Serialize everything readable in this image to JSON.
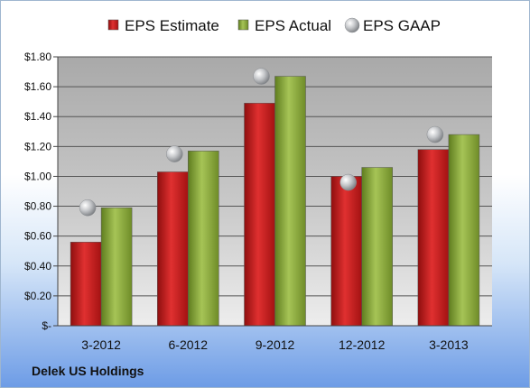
{
  "company": "Delek US Holdings",
  "chart_data": {
    "type": "bar",
    "categories": [
      "3-2012",
      "6-2012",
      "9-2012",
      "12-2012",
      "3-2013"
    ],
    "series": [
      {
        "name": "EPS Estimate",
        "values": [
          0.56,
          1.03,
          1.49,
          1.0,
          1.18
        ],
        "color": "#c81e1e",
        "kind": "bar"
      },
      {
        "name": "EPS Actual",
        "values": [
          0.79,
          1.17,
          1.67,
          1.06,
          1.28
        ],
        "color": "#8fb03c",
        "kind": "bar"
      },
      {
        "name": "EPS GAAP",
        "values": [
          0.79,
          1.15,
          1.67,
          0.96,
          1.28
        ],
        "color": "#b9bcc0",
        "kind": "marker"
      }
    ],
    "ylim": [
      0,
      1.8
    ],
    "y_ticks": [
      0,
      0.2,
      0.4,
      0.6,
      0.8,
      1.0,
      1.2,
      1.4,
      1.6,
      1.8
    ],
    "y_tick_labels": [
      "$-",
      "$0.20",
      "$0.40",
      "$0.60",
      "$0.80",
      "$1.00",
      "$1.20",
      "$1.40",
      "$1.60",
      "$1.80"
    ],
    "grid": true,
    "legend_position": "top"
  }
}
